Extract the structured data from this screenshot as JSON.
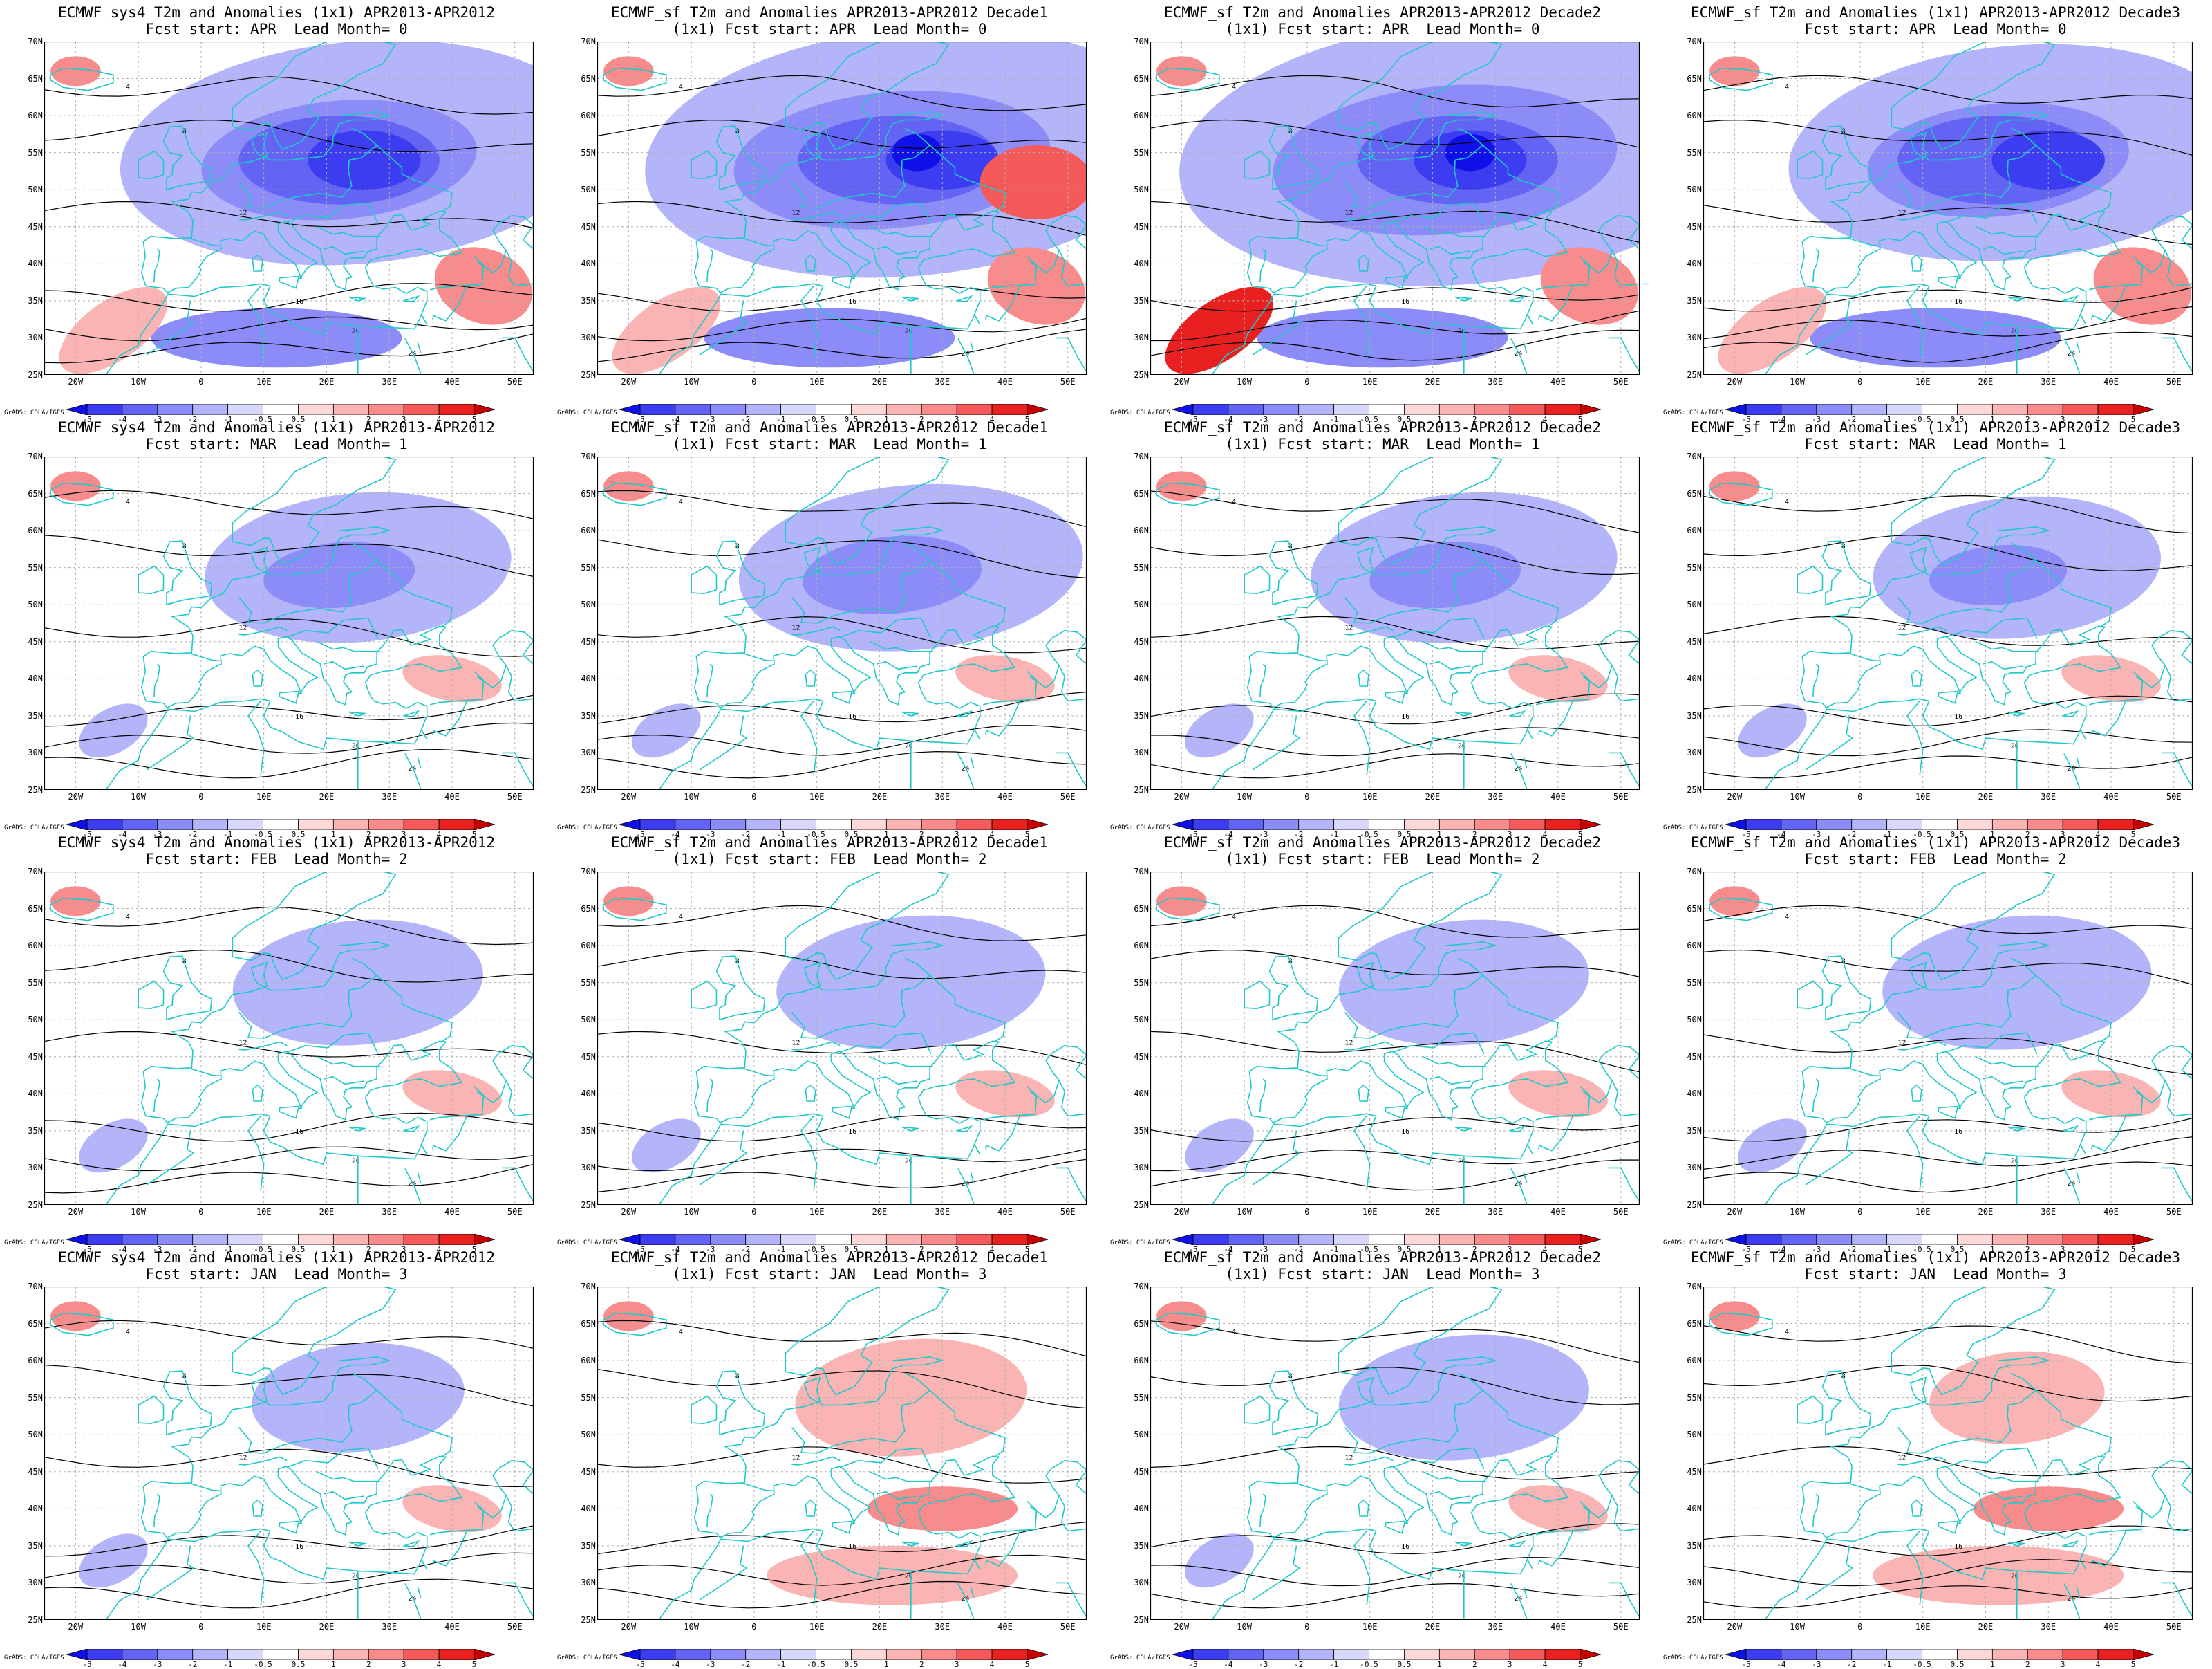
{
  "figure": {
    "lat_ticks": [
      "70N",
      "65N",
      "60N",
      "55N",
      "50N",
      "45N",
      "40N",
      "35N",
      "30N",
      "25N"
    ],
    "lon_ticks": [
      "20W",
      "10W",
      "0",
      "10E",
      "20E",
      "30E",
      "40E",
      "50E"
    ],
    "colorbar_labels": [
      "-5",
      "-4",
      "-3",
      "-2",
      "-1",
      "-0.5",
      "0.5",
      "1",
      "2",
      "3",
      "4",
      "5"
    ],
    "colorbar_colors": [
      "#1010e8",
      "#3c3cf0",
      "#6464f4",
      "#8c8cf8",
      "#b4b4fa",
      "#d8d8fd",
      "#ffffff",
      "#fdd8d8",
      "#fab4b4",
      "#f88c8c",
      "#f45a5a",
      "#e82020",
      "#c80000"
    ],
    "credit": "GrADS: COLA/IGES",
    "contour_color": "#000000",
    "coastline_color": "#20c8c8"
  },
  "panels": [
    {
      "title1": "ECMWF sys4 T2m and Anomalies (1x1) APR2013-APR2012",
      "title2": "Fcst start: APR  Lead Month= 0",
      "strength": -1.0,
      "variant": 0
    },
    {
      "title1": "ECMWF_sf T2m and Anomalies APR2013-APR2012 Decade1",
      "title2": "(1x1) Fcst start: APR  Lead Month= 0",
      "strength": -1.15,
      "variant": 1
    },
    {
      "title1": "ECMWF_sf T2m and Anomalies APR2013-APR2012 Decade2",
      "title2": "(1x1) Fcst start: APR  Lead Month= 0",
      "strength": -1.25,
      "variant": 2
    },
    {
      "title1": "ECMWF_sf T2m and Anomalies (1x1) APR2013-APR2012 Decade3",
      "title2": "Fcst start: APR  Lead Month= 0",
      "strength": -0.95,
      "variant": 3
    },
    {
      "title1": "ECMWF sys4 T2m and Anomalies (1x1) APR2013-APR2012",
      "title2": "Fcst start: MAR  Lead Month= 1",
      "strength": -0.55,
      "variant": 4
    },
    {
      "title1": "ECMWF_sf T2m and Anomalies APR2013-APR2012 Decade1",
      "title2": "(1x1) Fcst start: MAR  Lead Month= 1",
      "strength": -0.65,
      "variant": 5
    },
    {
      "title1": "ECMWF_sf T2m and Anomalies APR2013-APR2012 Decade2",
      "title2": "(1x1) Fcst start: MAR  Lead Month= 1",
      "strength": -0.55,
      "variant": 6
    },
    {
      "title1": "ECMWF_sf T2m and Anomalies (1x1) APR2013-APR2012 Decade3",
      "title2": "Fcst start: MAR  Lead Month= 1",
      "strength": -0.5,
      "variant": 7
    },
    {
      "title1": "ECMWF sys4 T2m and Anomalies (1x1) APR2013-APR2012",
      "title2": "Fcst start: FEB  Lead Month= 2",
      "strength": -0.4,
      "variant": 8
    },
    {
      "title1": "ECMWF_sf T2m and Anomalies APR2013-APR2012 Decade1",
      "title2": "(1x1) Fcst start: FEB  Lead Month= 2",
      "strength": -0.45,
      "variant": 9
    },
    {
      "title1": "ECMWF_sf T2m and Anomalies APR2013-APR2012 Decade2",
      "title2": "(1x1) Fcst start: FEB  Lead Month= 2",
      "strength": -0.4,
      "variant": 10
    },
    {
      "title1": "ECMWF_sf T2m and Anomalies (1x1) APR2013-APR2012 Decade3",
      "title2": "Fcst start: FEB  Lead Month= 2",
      "strength": -0.45,
      "variant": 11
    },
    {
      "title1": "ECMWF sys4 T2m and Anomalies (1x1) APR2013-APR2012",
      "title2": "Fcst start: JAN  Lead Month= 3",
      "strength": -0.3,
      "variant": 12
    },
    {
      "title1": "ECMWF_sf T2m and Anomalies APR2013-APR2012 Decade1",
      "title2": "(1x1) Fcst start: JAN  Lead Month= 3",
      "strength": 0.35,
      "variant": 13
    },
    {
      "title1": "ECMWF_sf T2m and Anomalies APR2013-APR2012 Decade2",
      "title2": "(1x1) Fcst start: JAN  Lead Month= 3",
      "strength": -0.4,
      "variant": 14
    },
    {
      "title1": "ECMWF_sf T2m and Anomalies (1x1) APR2013-APR2012 Decade3",
      "title2": "Fcst start: JAN  Lead Month= 3",
      "strength": 0.2,
      "variant": 15
    }
  ]
}
